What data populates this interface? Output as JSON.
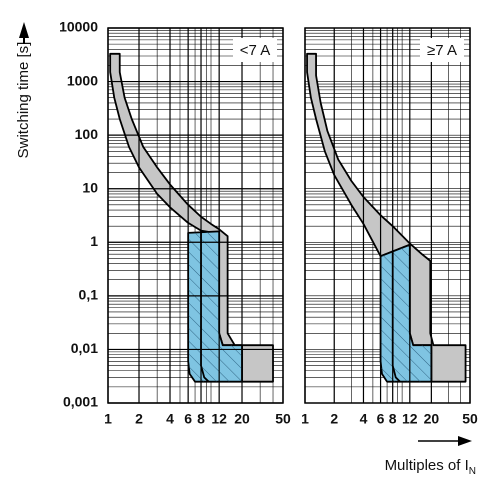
{
  "chart_data": [
    {
      "type": "area",
      "annotation": "<7 A",
      "y_label": "Switching time [s]",
      "xlim": [
        1,
        50
      ],
      "ylim": [
        0.001,
        10000
      ],
      "log_x": true,
      "log_y": true,
      "grid": true,
      "xticks": [
        1,
        2,
        4,
        6,
        8,
        12,
        20,
        50
      ],
      "yticks": [
        {
          "value": 0.001,
          "label": "0,001"
        },
        {
          "value": 0.01,
          "label": "0,01"
        },
        {
          "value": 0.1,
          "label": "0,1"
        },
        1,
        10,
        100,
        1000,
        10000
      ],
      "areas": [
        {
          "color": "#c6c6c6",
          "hatch": false,
          "x": [
            1.05,
            1.05,
            1.15,
            1.3,
            1.6,
            2,
            3,
            4,
            6,
            8,
            12,
            12,
            13,
            20,
            20,
            40,
            40,
            17,
            14.5,
            14.5,
            12,
            10,
            8,
            6,
            4,
            3,
            2.2,
            1.7,
            1.45,
            1.3,
            1.3
          ],
          "y": [
            3300,
            1500,
            500,
            200,
            60,
            25,
            8,
            4.5,
            2.3,
            1.65,
            1.45,
            0.02,
            0.012,
            0.012,
            0.0025,
            0.0025,
            0.012,
            0.012,
            0.02,
            1.3,
            1.75,
            2.2,
            3,
            5,
            12,
            25,
            60,
            200,
            500,
            1500,
            3300
          ]
        },
        {
          "color": "#7fc4e2",
          "hatch": true,
          "x": [
            6,
            12,
            12,
            13,
            20,
            20,
            7,
            6.2,
            6
          ],
          "y": [
            1.5,
            1.6,
            0.02,
            0.012,
            0.012,
            0.0025,
            0.0025,
            0.0035,
            0.006
          ]
        }
      ],
      "lines": [
        {
          "color": "#000000",
          "x": [
            8,
            8,
            8.6,
            9.5
          ],
          "y": [
            1.65,
            0.005,
            0.003,
            0.0025
          ]
        }
      ]
    },
    {
      "type": "area",
      "annotation": "≥7 A",
      "x_label": "Multiples of I",
      "x_label_subscript": "N",
      "xlim": [
        1,
        50
      ],
      "ylim": [
        0.001,
        10000
      ],
      "log_x": true,
      "log_y": true,
      "grid": true,
      "xticks": [
        1,
        2,
        4,
        6,
        8,
        12,
        20,
        50
      ],
      "areas": [
        {
          "color": "#c6c6c6",
          "hatch": false,
          "x": [
            1.05,
            1.05,
            1.15,
            1.3,
            1.6,
            2,
            3,
            4,
            6,
            12,
            12,
            13,
            20,
            20,
            45,
            45,
            21,
            19.5,
            19.5,
            16,
            12,
            8,
            6,
            4,
            3,
            2.2,
            1.7,
            1.45,
            1.3,
            1.3
          ],
          "y": [
            3300,
            1500,
            500,
            200,
            50,
            18,
            5,
            2.2,
            0.55,
            0.9,
            0.02,
            0.012,
            0.012,
            0.0025,
            0.0025,
            0.012,
            0.012,
            0.02,
            0.45,
            0.6,
            0.95,
            2,
            3.2,
            7,
            14,
            35,
            120,
            400,
            1300,
            3300
          ]
        },
        {
          "color": "#7fc4e2",
          "hatch": true,
          "x": [
            6,
            12,
            12,
            13,
            20,
            20,
            7,
            6.2,
            6
          ],
          "y": [
            0.55,
            0.9,
            0.02,
            0.012,
            0.012,
            0.0025,
            0.0025,
            0.0035,
            0.006
          ]
        }
      ],
      "lines": [
        {
          "color": "#000000",
          "x": [
            8,
            8,
            8.6,
            9.5
          ],
          "y": [
            0.7,
            0.005,
            0.003,
            0.0025
          ]
        }
      ]
    }
  ]
}
